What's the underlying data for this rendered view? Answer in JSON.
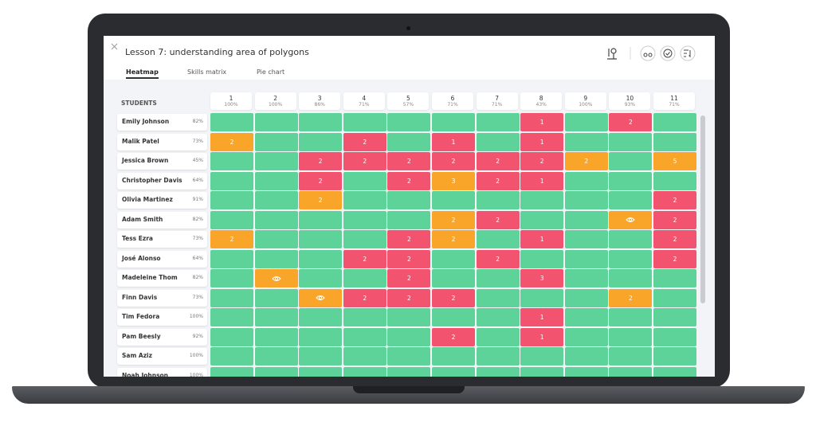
{
  "header": {
    "title": "Lesson 7: understanding area of polygons"
  },
  "tabs": [
    "Heatmap",
    "Skills matrix",
    "Pie chart"
  ],
  "table": {
    "students_label": "STUDENTS",
    "empty_color": "#5dd39a",
    "columns": [
      {
        "number": "1",
        "score": "100%"
      },
      {
        "number": "2",
        "score": "100%"
      },
      {
        "number": "3",
        "score": "86%"
      },
      {
        "number": "4",
        "score": "71%"
      },
      {
        "number": "5",
        "score": "57%"
      },
      {
        "number": "6",
        "score": "71%"
      },
      {
        "number": "7",
        "score": "71%"
      },
      {
        "number": "8",
        "score": "43%"
      },
      {
        "number": "9",
        "score": "100%"
      },
      {
        "number": "10",
        "score": "93%"
      },
      {
        "number": "11",
        "score": "71%"
      }
    ],
    "rows": [
      {
        "name": "Emily Johnson",
        "score": "82%",
        "cells": [
          null,
          null,
          null,
          null,
          null,
          null,
          null,
          {
            "color": "#f2546f",
            "value": 1
          },
          null,
          {
            "color": "#f2546f",
            "value": 2
          },
          null
        ]
      },
      {
        "name": "Malik Patel",
        "score": "73%",
        "cells": [
          {
            "color": "#f8a52a",
            "value": 2
          },
          null,
          null,
          {
            "color": "#f2546f",
            "value": 2
          },
          null,
          {
            "color": "#f2546f",
            "value": 1
          },
          null,
          {
            "color": "#f2546f",
            "value": 1
          },
          null,
          null,
          null
        ]
      },
      {
        "name": "Jessica Brown",
        "score": "45%",
        "cells": [
          null,
          null,
          {
            "color": "#f2546f",
            "value": 2
          },
          {
            "color": "#f2546f",
            "value": 2
          },
          {
            "color": "#f2546f",
            "value": 2
          },
          {
            "color": "#f2546f",
            "value": 2
          },
          {
            "color": "#f2546f",
            "value": 2
          },
          {
            "color": "#f2546f",
            "value": 2
          },
          {
            "color": "#f8a52a",
            "value": 2
          },
          null,
          {
            "color": "#f8a52a",
            "value": 5
          }
        ]
      },
      {
        "name": "Christopher Davis",
        "score": "64%",
        "cells": [
          null,
          null,
          {
            "color": "#f2546f",
            "value": 2
          },
          null,
          {
            "color": "#f2546f",
            "value": 2
          },
          {
            "color": "#f8a52a",
            "value": 3
          },
          {
            "color": "#f2546f",
            "value": 2
          },
          {
            "color": "#f2546f",
            "value": 1
          },
          null,
          null,
          null
        ]
      },
      {
        "name": "Olivia Martinez",
        "score": "91%",
        "cells": [
          null,
          null,
          {
            "color": "#f8a52a",
            "value": 2
          },
          null,
          null,
          null,
          null,
          null,
          null,
          null,
          {
            "color": "#f2546f",
            "value": 2
          }
        ]
      },
      {
        "name": "Adam Smith",
        "score": "82%",
        "cells": [
          null,
          null,
          null,
          null,
          null,
          {
            "color": "#f8a52a",
            "value": 2
          },
          {
            "color": "#f2546f",
            "value": 2
          },
          null,
          null,
          {
            "color": "#f8a52a",
            "icon": "eye"
          },
          {
            "color": "#f2546f",
            "value": 2
          }
        ]
      },
      {
        "name": "Tess Ezra",
        "score": "73%",
        "cells": [
          {
            "color": "#f8a52a",
            "value": 2
          },
          null,
          null,
          null,
          {
            "color": "#f2546f",
            "value": 2
          },
          {
            "color": "#f8a52a",
            "value": 2
          },
          null,
          {
            "color": "#f2546f",
            "value": 1
          },
          null,
          null,
          {
            "color": "#f2546f",
            "value": 2
          }
        ]
      },
      {
        "name": "José Alonso",
        "score": "64%",
        "cells": [
          null,
          null,
          null,
          {
            "color": "#f2546f",
            "value": 2
          },
          {
            "color": "#f2546f",
            "value": 2
          },
          null,
          {
            "color": "#f2546f",
            "value": 2
          },
          null,
          null,
          null,
          {
            "color": "#f2546f",
            "value": 2
          }
        ]
      },
      {
        "name": "Madeleine Thom",
        "score": "82%",
        "cells": [
          null,
          {
            "color": "#f8a52a",
            "icon": "eye"
          },
          null,
          null,
          {
            "color": "#f2546f",
            "value": 2
          },
          null,
          null,
          {
            "color": "#f2546f",
            "value": 3
          },
          null,
          null,
          null
        ]
      },
      {
        "name": "Finn Davis",
        "score": "73%",
        "cells": [
          null,
          null,
          {
            "color": "#f8a52a",
            "icon": "eye"
          },
          {
            "color": "#f2546f",
            "value": 2
          },
          {
            "color": "#f2546f",
            "value": 2
          },
          {
            "color": "#f2546f",
            "value": 2
          },
          null,
          null,
          null,
          {
            "color": "#f8a52a",
            "value": 2
          },
          null
        ]
      },
      {
        "name": "Tim Fedora",
        "score": "100%",
        "cells": [
          null,
          null,
          null,
          null,
          null,
          null,
          null,
          {
            "color": "#f2546f",
            "value": 1
          },
          null,
          null,
          null
        ]
      },
      {
        "name": "Pam Beesly",
        "score": "92%",
        "cells": [
          null,
          null,
          null,
          null,
          null,
          {
            "color": "#f2546f",
            "value": 2
          },
          null,
          {
            "color": "#f2546f",
            "value": 1
          },
          null,
          null,
          null
        ]
      },
      {
        "name": "Sam Aziz",
        "score": "100%",
        "cells": [
          null,
          null,
          null,
          null,
          null,
          null,
          null,
          null,
          null,
          null,
          null
        ]
      },
      {
        "name": "Noah Johnson",
        "score": "100%",
        "cells": [
          null,
          null,
          null,
          null,
          null,
          null,
          null,
          null,
          null,
          null,
          null
        ]
      }
    ]
  }
}
